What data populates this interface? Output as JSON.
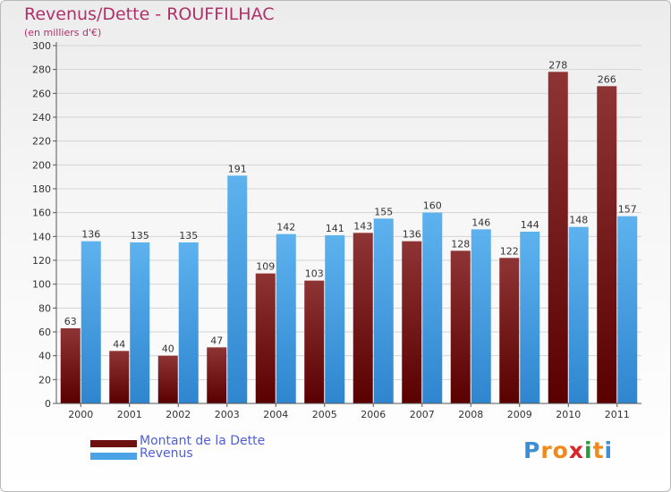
{
  "chart_data": {
    "type": "bar",
    "title": "Revenus/Dette - ROUFFILHAC",
    "subtitle": "(en milliers d'€)",
    "categories": [
      "2000",
      "2001",
      "2002",
      "2003",
      "2004",
      "2005",
      "2006",
      "2007",
      "2008",
      "2009",
      "2010",
      "2011"
    ],
    "series": [
      {
        "name": "Montant de la Dette",
        "color": "#7a1c1c",
        "values": [
          63,
          44,
          40,
          47,
          109,
          103,
          143,
          136,
          128,
          122,
          278,
          266
        ]
      },
      {
        "name": "Revenus",
        "color": "#4aa3e6",
        "values": [
          136,
          135,
          135,
          191,
          142,
          141,
          155,
          160,
          146,
          144,
          148,
          157
        ]
      }
    ],
    "ylim": [
      0,
      300
    ],
    "yticks": [
      0,
      20,
      40,
      60,
      80,
      100,
      120,
      140,
      160,
      180,
      200,
      220,
      240,
      260,
      280,
      300
    ],
    "grid": true,
    "legend_position": "bottom-left",
    "data_labels": true
  },
  "logo": {
    "letters": [
      "P",
      "r",
      "o",
      "x",
      "i",
      "t",
      "i"
    ],
    "colors": [
      "#3b8fd6",
      "#f08a1c",
      "#f08a1c",
      "#d7262c",
      "#2d9a3c",
      "#f08a1c",
      "#3b8fd6"
    ]
  }
}
